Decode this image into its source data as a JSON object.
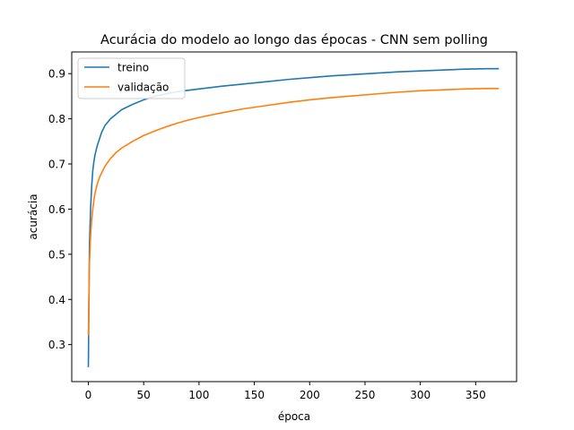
{
  "chart_data": {
    "type": "line",
    "title": "Acurácia do modelo ao longo das épocas - CNN sem polling",
    "xlabel": "época",
    "ylabel": "acurácia",
    "xlim": [
      -15,
      387
    ],
    "ylim": [
      0.218,
      0.948
    ],
    "xticks": [
      0,
      50,
      100,
      150,
      200,
      250,
      300,
      350
    ],
    "yticks": [
      0.3,
      0.4,
      0.5,
      0.6,
      0.7,
      0.8,
      0.9
    ],
    "grid": false,
    "legend_position": "top-left",
    "series": [
      {
        "name": "treino",
        "color": "#1f77b4",
        "x": [
          0,
          1,
          2,
          3,
          4,
          5,
          6,
          8,
          10,
          12,
          15,
          20,
          25,
          30,
          40,
          50,
          60,
          70,
          80,
          90,
          100,
          120,
          140,
          160,
          180,
          200,
          220,
          240,
          260,
          280,
          300,
          320,
          340,
          360,
          371
        ],
        "y": [
          0.25,
          0.52,
          0.6,
          0.65,
          0.685,
          0.705,
          0.72,
          0.74,
          0.755,
          0.77,
          0.785,
          0.8,
          0.81,
          0.82,
          0.832,
          0.842,
          0.85,
          0.855,
          0.86,
          0.863,
          0.866,
          0.872,
          0.877,
          0.882,
          0.887,
          0.891,
          0.895,
          0.898,
          0.901,
          0.904,
          0.906,
          0.908,
          0.91,
          0.911,
          0.911
        ]
      },
      {
        "name": "validação",
        "color": "#ff7f0e",
        "x": [
          0,
          1,
          2,
          3,
          4,
          5,
          6,
          8,
          10,
          12,
          15,
          20,
          25,
          30,
          40,
          50,
          60,
          70,
          80,
          90,
          100,
          120,
          140,
          160,
          180,
          200,
          220,
          240,
          260,
          280,
          300,
          320,
          340,
          360,
          371
        ],
        "y": [
          0.32,
          0.48,
          0.54,
          0.575,
          0.6,
          0.62,
          0.635,
          0.655,
          0.67,
          0.68,
          0.695,
          0.712,
          0.725,
          0.735,
          0.75,
          0.763,
          0.773,
          0.782,
          0.79,
          0.797,
          0.803,
          0.813,
          0.822,
          0.829,
          0.836,
          0.842,
          0.847,
          0.851,
          0.855,
          0.859,
          0.862,
          0.864,
          0.866,
          0.867,
          0.867
        ]
      }
    ]
  }
}
